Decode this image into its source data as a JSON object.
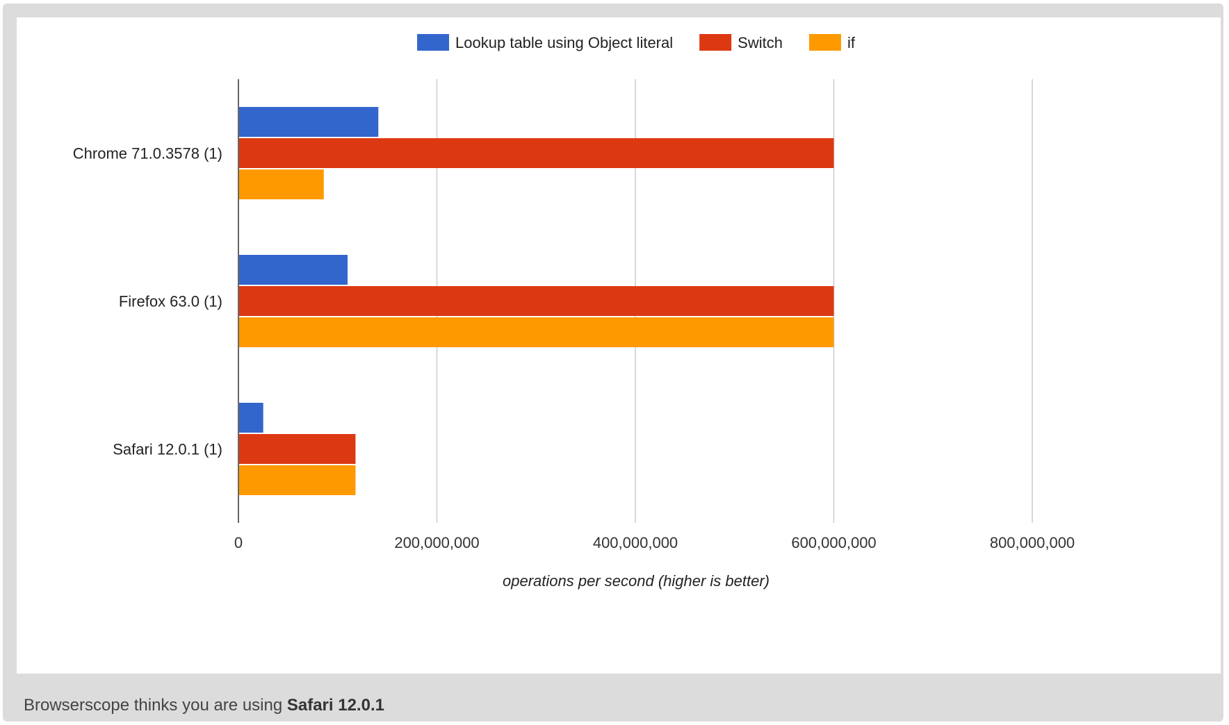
{
  "colors": {
    "lookup": "#3366cc",
    "switch": "#dc3912",
    "if": "#ff9900"
  },
  "footer": {
    "prefix": "Browserscope thinks you are using",
    "browser": "Safari 12.0.1"
  },
  "chart_data": {
    "type": "bar",
    "orientation": "horizontal",
    "categories": [
      "Chrome 71.0.3578 (1)",
      "Firefox 63.0 (1)",
      "Safari 12.0.1 (1)"
    ],
    "series": [
      {
        "name": "Lookup table using Object literal",
        "color": "#3366cc",
        "values": [
          141000000,
          110000000,
          25000000
        ]
      },
      {
        "name": "Switch",
        "color": "#dc3912",
        "values": [
          600000000,
          600000000,
          118000000
        ]
      },
      {
        "name": "if",
        "color": "#ff9900",
        "values": [
          86000000,
          600000000,
          118000000
        ]
      }
    ],
    "xlabel": "operations per second (higher is better)",
    "xlim": [
      0,
      800000000
    ],
    "xticks": [
      0,
      200000000,
      400000000,
      600000000,
      800000000
    ],
    "xtick_labels": [
      "0",
      "200,000,000",
      "400,000,000",
      "600,000,000",
      "800,000,000"
    ],
    "grid": true,
    "legend": "top"
  }
}
